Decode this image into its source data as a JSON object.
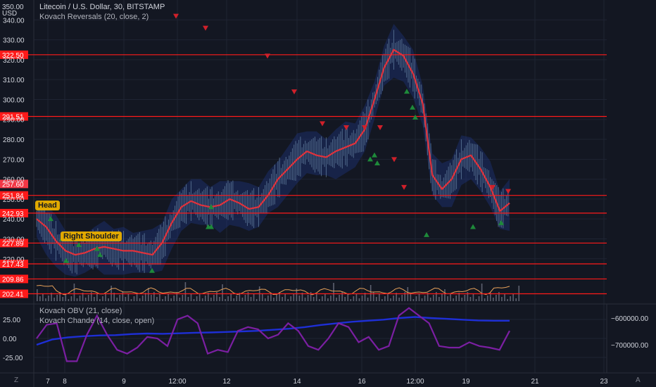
{
  "header": {
    "symbol_line": "Litecoin / U.S. Dollar, 30, BITSTAMP",
    "indicator_line": "Kovach Reversals (20, close, 2)",
    "currency": "USD",
    "top_tick": "350.00"
  },
  "lower_pane": {
    "obv_label": "Kovach OBV (21, close)",
    "chande_label": "Kovach Chande (14, close, open)"
  },
  "annotations": {
    "head": "Head",
    "right_shoulder": "Right Shoulder"
  },
  "corner": {
    "left": "Z",
    "right": "A"
  },
  "colors": {
    "background": "#131722",
    "grid": "#1f2433",
    "level_line": "#ff1a1a",
    "ma_line": "#e0323c",
    "band_fill": "#1f3a8f",
    "obv_line": "#1e2fd6",
    "chande_line": "#7b1fa2",
    "volume_osc": "#e8a25a",
    "up_marker": "#1e8a3a",
    "down_marker": "#d0202a",
    "tag_bg": "#e0a800"
  },
  "chart_data": [
    {
      "type": "line",
      "title": "Litecoin / U.S. Dollar, 30, BITSTAMP",
      "ylim": [
        198,
        350
      ],
      "y_ticks": [
        220,
        230,
        240,
        250,
        260,
        270,
        280,
        290,
        300,
        310,
        320,
        330,
        340
      ],
      "x_tick_labels": [
        "7",
        "8",
        "9",
        "12:00",
        "12",
        "14",
        "16",
        "12:00",
        "19",
        "21",
        "23"
      ],
      "level_lines": [
        322.5,
        291.51,
        251.84,
        242.93,
        227.89,
        217.43,
        209.86,
        202.41
      ],
      "last_price": 257.6,
      "series": [
        {
          "name": "Kovach Reversals (20, close, 2)",
          "values": [
            240,
            236,
            229,
            224,
            222,
            223,
            225,
            226,
            225,
            224,
            224,
            223,
            222,
            228,
            238,
            246,
            249,
            247,
            246,
            247,
            250,
            248,
            245,
            246,
            252,
            260,
            265,
            270,
            274,
            272,
            271,
            274,
            276,
            278,
            285,
            300,
            316,
            325,
            322,
            313,
            298,
            262,
            255,
            260,
            270,
            272,
            265,
            256,
            244,
            248
          ]
        }
      ],
      "down_markers": [
        342,
        336,
        322,
        304,
        288,
        286,
        286,
        286,
        270,
        256,
        256,
        254
      ],
      "up_markers": [
        247,
        240,
        230,
        227,
        225,
        222,
        219,
        214,
        236,
        246,
        236,
        270,
        272,
        268,
        304,
        296,
        291,
        232,
        236,
        238
      ]
    },
    {
      "type": "line",
      "title": "",
      "y_ticks": [
        -25.0,
        0.0,
        25.0
      ],
      "series": [
        {
          "name": "Kovach OBV (21, close)",
          "axis": "right",
          "right_ticks": [
            -600000.0,
            -700000.0
          ],
          "values": [
            -700000,
            -680000,
            -672000,
            -668000,
            -665000,
            -664000,
            -660000,
            -658000,
            -659000,
            -657000,
            -655000,
            -654000,
            -652000,
            -650000,
            -648000,
            -644000,
            -640000,
            -634000,
            -626000,
            -620000,
            -614000,
            -610000,
            -606000,
            -600000,
            -596000,
            -600000,
            -603000,
            -606000,
            -609000,
            -610000,
            -610000
          ]
        },
        {
          "name": "Kovach Chande (14, close, open)",
          "axis": "left",
          "values": [
            0,
            18,
            20,
            -30,
            -30,
            5,
            30,
            5,
            -15,
            -20,
            -12,
            2,
            0,
            -10,
            25,
            30,
            20,
            -20,
            -15,
            -18,
            10,
            15,
            12,
            0,
            5,
            20,
            10,
            -10,
            -15,
            0,
            20,
            15,
            -5,
            2,
            -15,
            -10,
            30,
            40,
            30,
            20,
            -10,
            -12,
            -12,
            -5,
            -10,
            -12,
            -15,
            10
          ]
        }
      ]
    }
  ]
}
